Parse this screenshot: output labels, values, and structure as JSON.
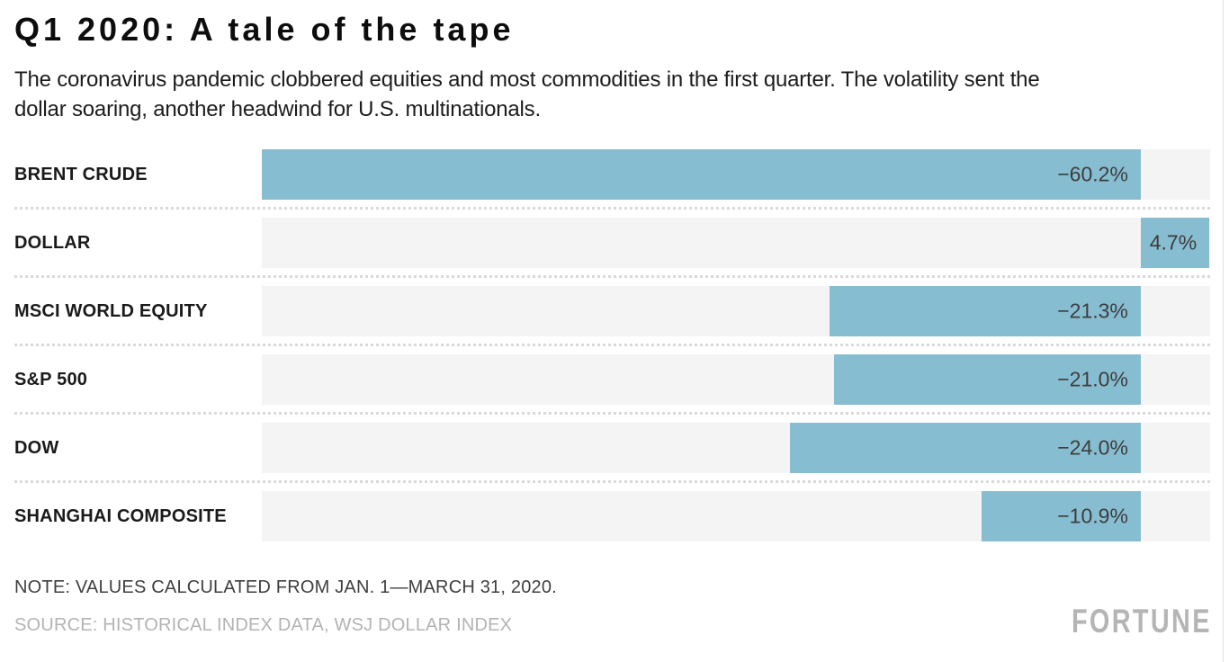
{
  "header": {
    "title": "Q1 2020: A tale of the tape",
    "subtitle": "The coronavirus pandemic clobbered equities and most commodities in the first quarter. The volatility sent the dollar soaring, another headwind for U.S. multinationals."
  },
  "chart_data": {
    "type": "bar",
    "orientation": "horizontal",
    "categories": [
      "BRENT CRUDE",
      "DOLLAR",
      "MSCI WORLD EQUITY",
      "S&P 500",
      "DOW",
      "SHANGHAI COMPOSITE"
    ],
    "values": [
      -60.2,
      4.7,
      -21.3,
      -21.0,
      -24.0,
      -10.9
    ],
    "value_labels": [
      "−60.2%",
      "4.7%",
      "−21.3%",
      "−21.0%",
      "−24.0%",
      "−10.9%"
    ],
    "title": "Q1 2020: A tale of the tape",
    "xlabel": "",
    "ylabel": "",
    "xlim": [
      -60.2,
      4.75
    ],
    "grid": false,
    "legend": false,
    "bar_color": "#87bdd1",
    "row_bg_color": "#f4f4f4",
    "value_text_color": "#3d3d3d"
  },
  "footer": {
    "note": "NOTE: VALUES CALCULATED FROM JAN. 1—MARCH 31, 2020.",
    "source": "SOURCE: HISTORICAL INDEX DATA, WSJ DOLLAR INDEX",
    "logo": "FORTUNE"
  }
}
